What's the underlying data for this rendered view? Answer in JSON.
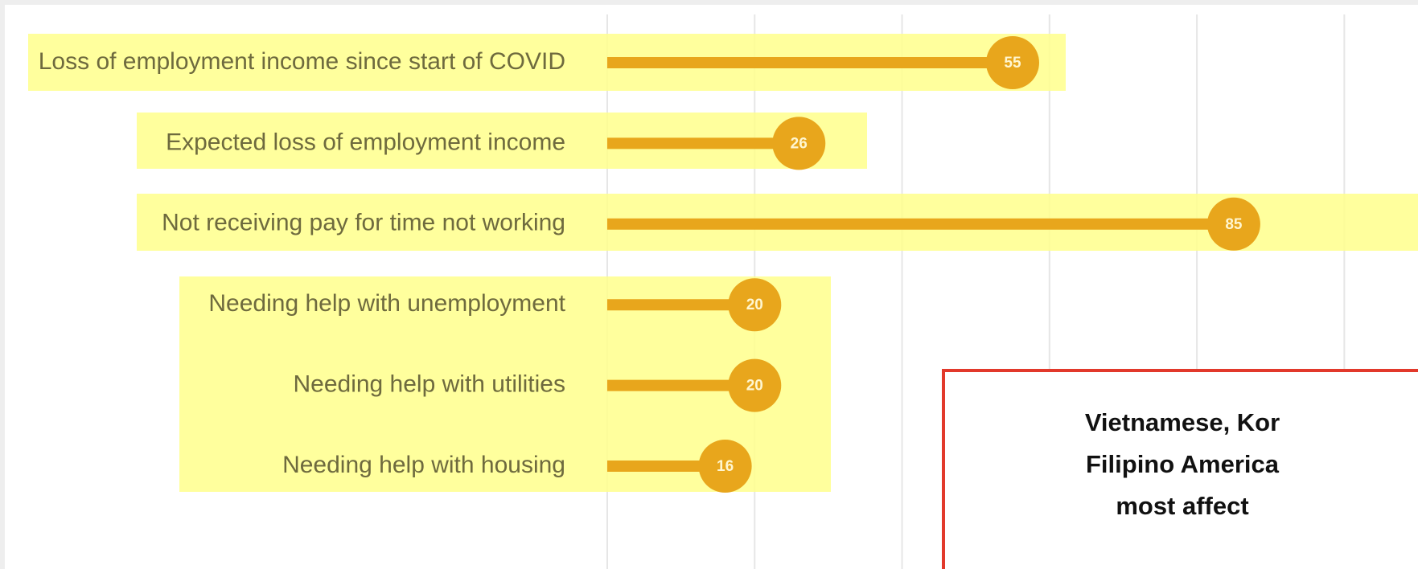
{
  "chart_data": {
    "type": "lollipop",
    "categories": [
      "Loss of employment income since start of COVID",
      "Expected loss of employment income",
      "Not receiving pay for time not working",
      "Needing help with unemployment",
      "Needing help with utilities",
      "Needing help with housing"
    ],
    "values": [
      55,
      26,
      85,
      20,
      20,
      16
    ],
    "color": "#e8a61c",
    "xlim": [
      0,
      110
    ],
    "xticks": [
      0,
      20,
      40,
      60,
      80,
      100
    ],
    "grid": true,
    "annotation": [
      "Vietnamese, Kor",
      "Filipino America",
      "most affect"
    ]
  }
}
